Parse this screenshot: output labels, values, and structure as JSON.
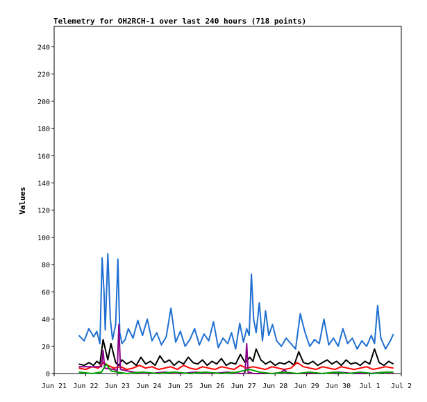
{
  "chart_data": {
    "type": "line",
    "title": "Telemetry for OH2RCH-1 over last 240 hours (718 points)",
    "ylabel": "Values",
    "xlabel": "",
    "ylim": [
      0,
      255
    ],
    "y_ticks": [
      0,
      20,
      40,
      60,
      80,
      100,
      120,
      140,
      160,
      180,
      200,
      220,
      240
    ],
    "x_tick_labels": [
      "Jun 21",
      "Jun 22",
      "Jun 23",
      "Jun 24",
      "Jun 25",
      "Jun 26",
      "Jun 27",
      "Jun 28",
      "Jun 29",
      "Jun 30",
      "Jul 1",
      "Jul 2"
    ],
    "x_days": [
      0,
      1,
      2,
      3,
      4,
      5,
      6,
      7,
      8,
      9,
      10,
      11
    ],
    "xlim_days": [
      0,
      11
    ],
    "grid": false,
    "series": [
      {
        "color": "#1f6fd1",
        "x": [
          0.78,
          0.95,
          1.1,
          1.25,
          1.35,
          1.45,
          1.52,
          1.58,
          1.62,
          1.7,
          1.78,
          1.85,
          1.95,
          2.02,
          2.08,
          2.15,
          2.25,
          2.35,
          2.5,
          2.65,
          2.8,
          2.95,
          3.1,
          3.25,
          3.4,
          3.55,
          3.7,
          3.85,
          4.0,
          4.15,
          4.3,
          4.45,
          4.6,
          4.75,
          4.9,
          5.05,
          5.2,
          5.35,
          5.5,
          5.62,
          5.75,
          5.88,
          6.0,
          6.1,
          6.18,
          6.25,
          6.32,
          6.4,
          6.5,
          6.6,
          6.7,
          6.8,
          6.92,
          7.05,
          7.2,
          7.35,
          7.5,
          7.65,
          7.8,
          7.95,
          8.1,
          8.25,
          8.4,
          8.55,
          8.7,
          8.85,
          9.0,
          9.15,
          9.3,
          9.45,
          9.6,
          9.75,
          9.9,
          10.05,
          10.15,
          10.25,
          10.35,
          10.5,
          10.65,
          10.75
        ],
        "values": [
          28,
          24,
          33,
          27,
          31,
          22,
          85,
          60,
          32,
          88,
          40,
          25,
          36,
          84,
          30,
          22,
          25,
          33,
          26,
          39,
          28,
          40,
          24,
          30,
          21,
          27,
          48,
          23,
          31,
          20,
          25,
          33,
          21,
          29,
          24,
          38,
          19,
          26,
          22,
          30,
          18,
          37,
          23,
          33,
          28,
          73,
          40,
          30,
          52,
          24,
          46,
          28,
          36,
          24,
          20,
          26,
          22,
          18,
          44,
          30,
          20,
          25,
          22,
          40,
          21,
          26,
          20,
          33,
          22,
          26,
          18,
          24,
          20,
          28,
          22,
          50,
          26,
          18,
          24,
          29
        ]
      },
      {
        "color": "#000000",
        "x": [
          0.78,
          0.95,
          1.1,
          1.25,
          1.35,
          1.45,
          1.55,
          1.62,
          1.7,
          1.8,
          1.95,
          2.05,
          2.15,
          2.3,
          2.45,
          2.6,
          2.75,
          2.9,
          3.05,
          3.2,
          3.35,
          3.5,
          3.65,
          3.8,
          3.95,
          4.1,
          4.25,
          4.4,
          4.55,
          4.7,
          4.85,
          5.0,
          5.15,
          5.3,
          5.45,
          5.6,
          5.75,
          5.9,
          6.05,
          6.2,
          6.3,
          6.4,
          6.55,
          6.7,
          6.85,
          7.0,
          7.15,
          7.3,
          7.45,
          7.6,
          7.75,
          7.9,
          8.05,
          8.2,
          8.35,
          8.5,
          8.65,
          8.8,
          8.95,
          9.1,
          9.25,
          9.4,
          9.55,
          9.7,
          9.85,
          10.0,
          10.15,
          10.3,
          10.45,
          10.6,
          10.75
        ],
        "values": [
          7,
          6,
          8,
          6,
          9,
          7,
          25,
          18,
          10,
          22,
          8,
          6,
          10,
          7,
          9,
          6,
          12,
          7,
          9,
          6,
          13,
          8,
          10,
          6,
          9,
          7,
          12,
          8,
          7,
          10,
          6,
          9,
          7,
          11,
          6,
          8,
          7,
          14,
          8,
          12,
          9,
          18,
          10,
          7,
          9,
          6,
          8,
          7,
          9,
          6,
          16,
          8,
          7,
          9,
          6,
          8,
          10,
          7,
          9,
          6,
          10,
          7,
          8,
          6,
          9,
          7,
          18,
          8,
          6,
          9,
          7
        ]
      },
      {
        "color": "#ff0000",
        "x": [
          0.78,
          1.0,
          1.2,
          1.4,
          1.55,
          1.7,
          1.9,
          2.1,
          2.3,
          2.5,
          2.7,
          2.9,
          3.1,
          3.3,
          3.5,
          3.7,
          3.9,
          4.1,
          4.3,
          4.5,
          4.7,
          4.9,
          5.1,
          5.3,
          5.5,
          5.7,
          5.9,
          6.1,
          6.3,
          6.5,
          6.7,
          6.9,
          7.1,
          7.3,
          7.5,
          7.7,
          7.9,
          8.1,
          8.3,
          8.5,
          8.7,
          8.9,
          9.1,
          9.3,
          9.5,
          9.7,
          9.9,
          10.1,
          10.3,
          10.5,
          10.75
        ],
        "values": [
          4,
          3,
          5,
          4,
          8,
          6,
          4,
          5,
          3,
          4,
          6,
          4,
          5,
          3,
          4,
          5,
          3,
          6,
          4,
          3,
          5,
          4,
          3,
          5,
          4,
          3,
          6,
          4,
          5,
          4,
          3,
          5,
          4,
          3,
          4,
          8,
          5,
          4,
          3,
          5,
          4,
          3,
          5,
          4,
          3,
          4,
          5,
          3,
          4,
          5,
          4
        ]
      },
      {
        "color": "#8b008b",
        "x": [
          0.78,
          1.2,
          1.5,
          1.55,
          1.6,
          1.9,
          2.0,
          2.05,
          2.1,
          2.5,
          3.0,
          3.5,
          4.0,
          4.5,
          5.0,
          5.5,
          5.9,
          6.0,
          6.05,
          6.1,
          6.15,
          6.2,
          6.3,
          6.6,
          7.0,
          7.2,
          7.3,
          7.4,
          8.0,
          8.5,
          9.0,
          9.5,
          10.0,
          10.5,
          10.75
        ],
        "values": [
          5,
          5,
          5,
          17,
          4,
          3,
          2,
          36,
          3,
          1,
          0,
          1,
          0,
          1,
          0,
          1,
          0,
          0,
          1,
          22,
          0,
          1,
          0,
          0,
          0,
          1,
          3,
          0,
          0,
          0,
          1,
          0,
          0,
          1,
          0
        ]
      },
      {
        "color": "#00a000",
        "x": [
          0.78,
          1.2,
          1.5,
          1.65,
          1.8,
          2.0,
          2.3,
          2.8,
          3.3,
          3.8,
          4.3,
          4.8,
          5.3,
          5.8,
          6.2,
          6.5,
          6.9,
          7.3,
          7.7,
          8.1,
          8.5,
          8.9,
          9.3,
          9.7,
          10.1,
          10.5,
          10.75
        ],
        "values": [
          1,
          0,
          1,
          7,
          2,
          1,
          0,
          1,
          0,
          1,
          0,
          1,
          0,
          1,
          3,
          1,
          0,
          1,
          0,
          1,
          0,
          1,
          0,
          1,
          0,
          1,
          1
        ]
      }
    ]
  }
}
